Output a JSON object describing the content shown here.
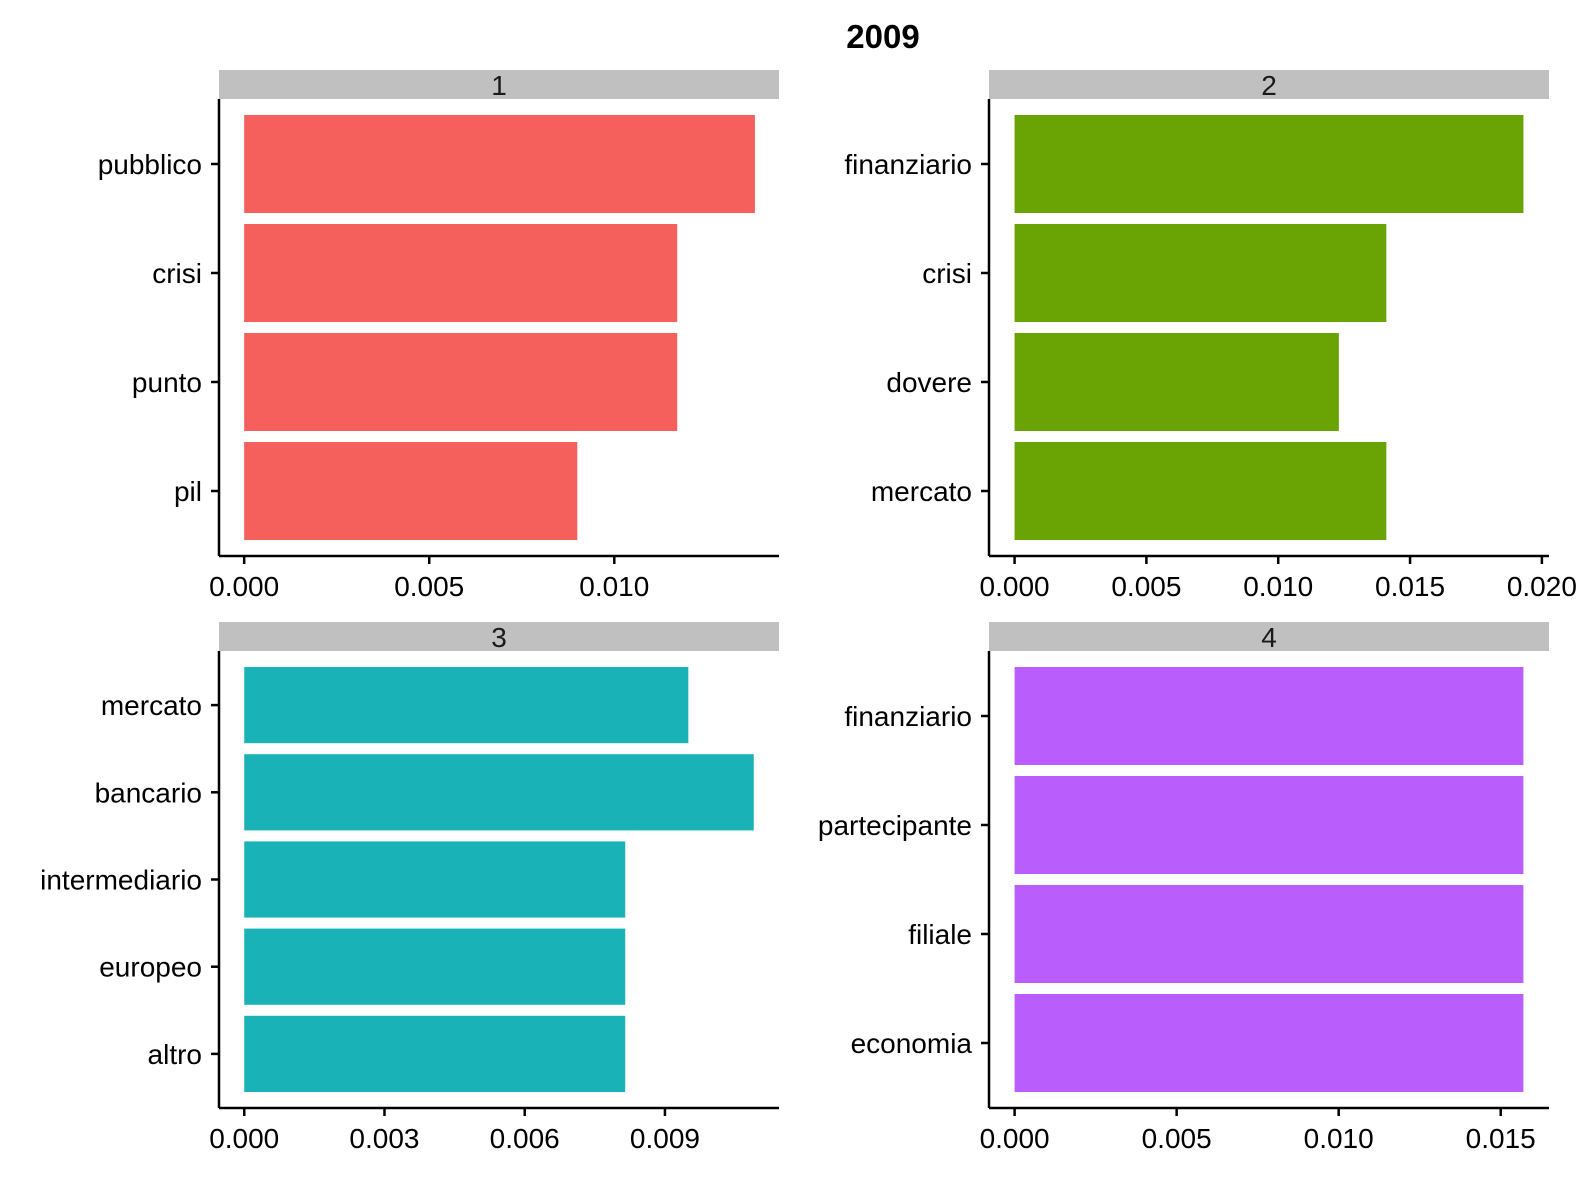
{
  "chart_data": {
    "type": "bar",
    "orientation": "horizontal",
    "title": "2009",
    "strip_color": "#c0c0c0",
    "panels": [
      {
        "label": "1",
        "color": "#f5605d",
        "categories": [
          "pubblico",
          "crisi",
          "punto",
          "pil"
        ],
        "values": [
          0.0138,
          0.0117,
          0.0117,
          0.009
        ],
        "xlim": [
          -0.00068,
          0.01445
        ],
        "ticks": [
          0.0,
          0.005,
          0.01
        ],
        "tick_labels": [
          "0.000",
          "0.005",
          "0.010"
        ]
      },
      {
        "label": "2",
        "color": "#6aa304",
        "categories": [
          "finanziario",
          "crisi",
          "dovere",
          "mercato"
        ],
        "values": [
          0.0193,
          0.0141,
          0.0123,
          0.0141
        ],
        "xlim": [
          -0.00097,
          0.02027
        ],
        "ticks": [
          0.0,
          0.005,
          0.01,
          0.015,
          0.02
        ],
        "tick_labels": [
          "0.000",
          "0.005",
          "0.010",
          "0.015",
          "0.020"
        ]
      },
      {
        "label": "3",
        "color": "#19b3b7",
        "categories": [
          "mercato",
          "bancario",
          "intermediario",
          "europeo",
          "altro"
        ],
        "values": [
          0.0095,
          0.0109,
          0.00815,
          0.00815,
          0.00815
        ],
        "xlim": [
          -0.00054,
          0.01144
        ],
        "ticks": [
          0.0,
          0.003,
          0.006,
          0.009
        ],
        "tick_labels": [
          "0.000",
          "0.003",
          "0.006",
          "0.009"
        ]
      },
      {
        "label": "4",
        "color": "#b95efc",
        "categories": [
          "finanziario",
          "partecipante",
          "filiale",
          "economia"
        ],
        "values": [
          0.0157,
          0.0157,
          0.0157,
          0.0157
        ],
        "xlim": [
          -0.00079,
          0.01649
        ],
        "ticks": [
          0.0,
          0.005,
          0.01,
          0.015
        ],
        "tick_labels": [
          "0.000",
          "0.005",
          "0.010",
          "0.015"
        ]
      }
    ]
  }
}
